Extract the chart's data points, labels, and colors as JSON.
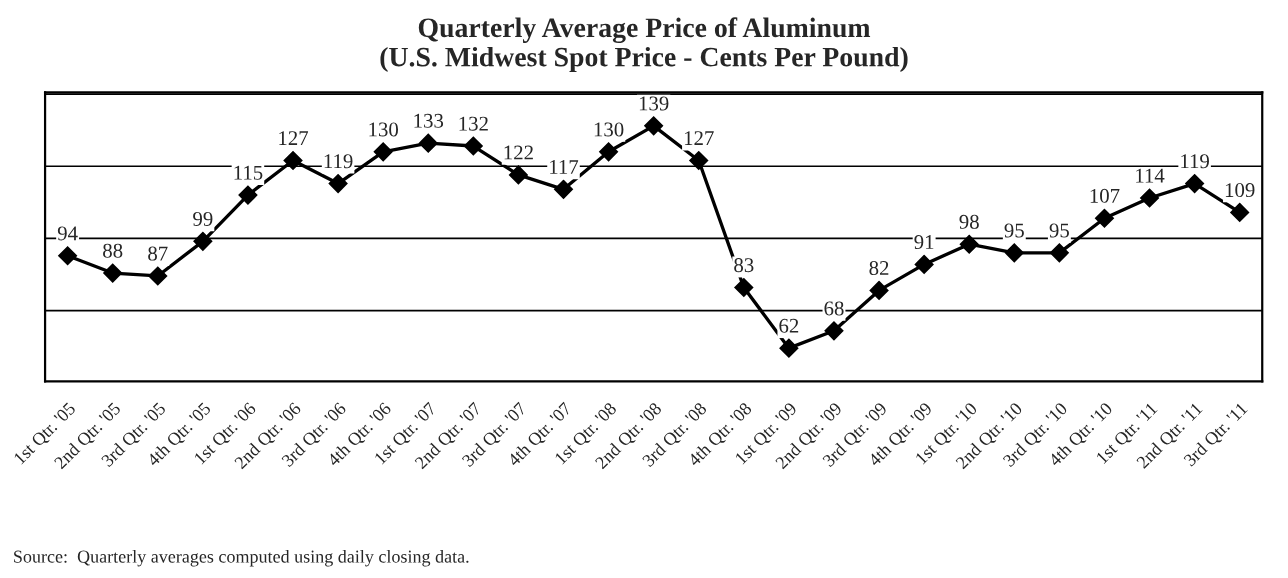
{
  "chart_data": {
    "type": "line",
    "title": "Quarterly Average Price of Aluminum\n(U.S. Midwest Spot Price - Cents Per Pound)",
    "categories": [
      "1st Qtr. '05",
      "2nd Qtr. '05",
      "3rd Qtr. '05",
      "4th Qtr. '05",
      "1st Qtr. '06",
      "2nd Qtr. '06",
      "3rd Qtr. '06",
      "4th Qtr. '06",
      "1st Qtr. '07",
      "2nd Qtr. '07",
      "3rd Qtr. '07",
      "4th Qtr. '07",
      "1st Qtr. '08",
      "2nd Qtr. '08",
      "3rd Qtr. '08",
      "4th Qtr. '08",
      "1st Qtr. '09",
      "2nd Qtr. '09",
      "3rd Qtr. '09",
      "4th Qtr. '09",
      "1st Qtr. '10",
      "2nd Qtr. '10",
      "3rd Qtr. '10",
      "4th Qtr. '10",
      "1st Qtr. '11",
      "2nd Qtr. '11",
      "3rd Qtr. '11"
    ],
    "series": [
      {
        "color": "#000000",
        "values": [
          94,
          88,
          87,
          99,
          115,
          127,
          119,
          130,
          133,
          132,
          122,
          117,
          130,
          139,
          127,
          83,
          62,
          68,
          82,
          91,
          98,
          95,
          95,
          107,
          114,
          119,
          109
        ]
      }
    ],
    "data_labels": true,
    "grid": "y",
    "tick_labels": "x",
    "marker": "diamond",
    "line_style": "solid",
    "legend": false,
    "annotations": [
      "Source:  Quarterly averages computed using daily closing data."
    ]
  }
}
